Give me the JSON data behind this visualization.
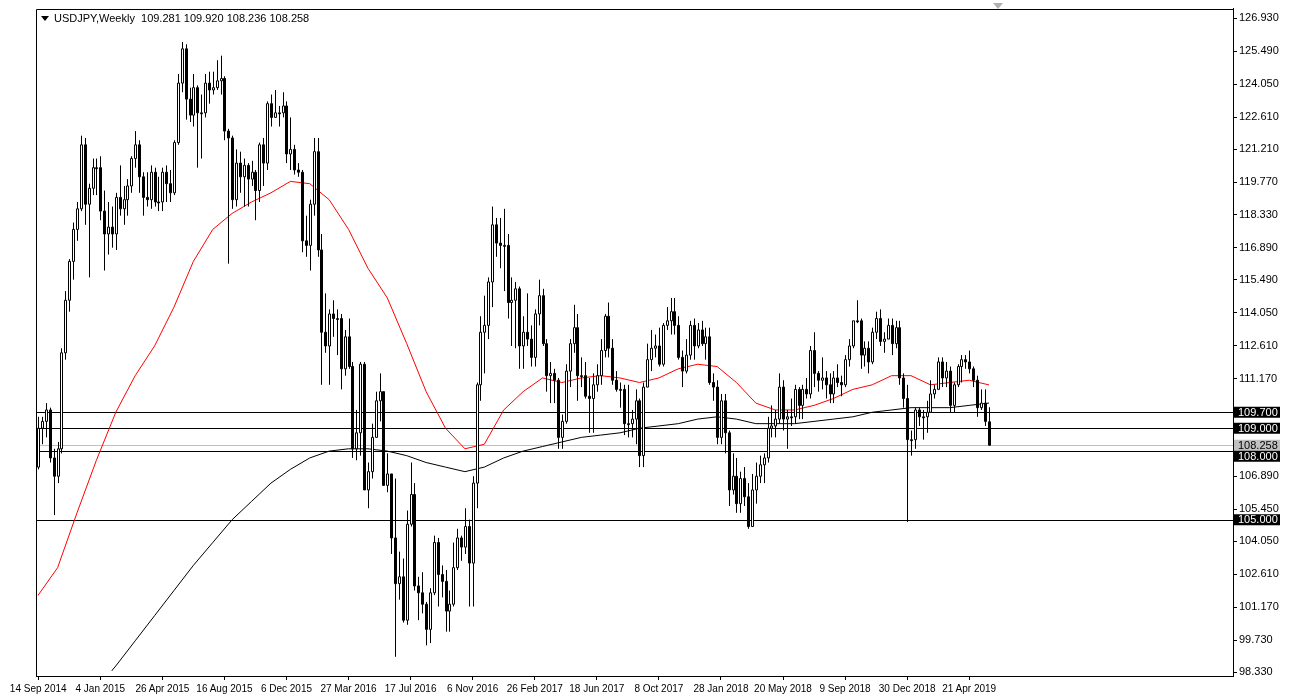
{
  "chart_data": {
    "type": "candlestick",
    "title": "USDJPY,Weekly  109.281 109.920 108.236 108.258",
    "grid": false,
    "legend": false,
    "xlim": [
      "2014-09-10",
      "2020-08-09"
    ],
    "xticks": [
      {
        "value": "2014-09-14",
        "label": "14 Sep 2014"
      },
      {
        "value": "2015-01-04",
        "label": "4 Jan 2015"
      },
      {
        "value": "2015-04-26",
        "label": "26 Apr 2015"
      },
      {
        "value": "2015-08-16",
        "label": "16 Aug 2015"
      },
      {
        "value": "2015-12-06",
        "label": "6 Dec 2015"
      },
      {
        "value": "2016-03-27",
        "label": "27 Mar 2016"
      },
      {
        "value": "2016-07-17",
        "label": "17 Jul 2016"
      },
      {
        "value": "2016-11-06",
        "label": "6 Nov 2016"
      },
      {
        "value": "2017-02-26",
        "label": "26 Feb 2017"
      },
      {
        "value": "2017-06-18",
        "label": "18 Jun 2017"
      },
      {
        "value": "2017-10-08",
        "label": "8 Oct 2017"
      },
      {
        "value": "2018-01-28",
        "label": "28 Jan 2018"
      },
      {
        "value": "2018-05-20",
        "label": "20 May 2018"
      },
      {
        "value": "2018-09-09",
        "label": "9 Sep 2018"
      },
      {
        "value": "2018-12-30",
        "label": "30 Dec 2018"
      },
      {
        "value": "2019-04-21",
        "label": "21 Apr 2019"
      }
    ],
    "ylim": [
      98.16,
      127.36
    ],
    "yticks": [
      {
        "value": 126.93,
        "label": "126.930"
      },
      {
        "value": 125.49,
        "label": "125.490"
      },
      {
        "value": 124.05,
        "label": "124.050"
      },
      {
        "value": 122.61,
        "label": "122.610"
      },
      {
        "value": 121.21,
        "label": "121.210"
      },
      {
        "value": 119.77,
        "label": "119.770"
      },
      {
        "value": 118.33,
        "label": "118.330"
      },
      {
        "value": 116.89,
        "label": "116.890"
      },
      {
        "value": 115.49,
        "label": "115.490"
      },
      {
        "value": 114.05,
        "label": "114.050"
      },
      {
        "value": 112.61,
        "label": "112.610"
      },
      {
        "value": 111.17,
        "label": "111.170"
      },
      {
        "value": 106.89,
        "label": "106.890"
      },
      {
        "value": 105.45,
        "label": "105.450"
      },
      {
        "value": 104.05,
        "label": "104.050"
      },
      {
        "value": 102.61,
        "label": "102.610"
      },
      {
        "value": 101.17,
        "label": "101.170"
      },
      {
        "value": 99.73,
        "label": "99.730"
      },
      {
        "value": 98.33,
        "label": "98.330"
      }
    ],
    "color": "#000000",
    "x": [
      "2014-09-14",
      "2014-09-21",
      "2014-09-28",
      "2014-10-05",
      "2014-10-12",
      "2014-10-19",
      "2014-10-26",
      "2014-11-02",
      "2014-11-09",
      "2014-11-16",
      "2014-11-23",
      "2014-11-30",
      "2014-12-07",
      "2014-12-14",
      "2014-12-21",
      "2014-12-28",
      "2015-01-04",
      "2015-01-11",
      "2015-01-18",
      "2015-01-25",
      "2015-02-01",
      "2015-02-08",
      "2015-02-15",
      "2015-02-22",
      "2015-03-01",
      "2015-03-08",
      "2015-03-15",
      "2015-03-22",
      "2015-03-29",
      "2015-04-05",
      "2015-04-12",
      "2015-04-19",
      "2015-04-26",
      "2015-05-03",
      "2015-05-10",
      "2015-05-17",
      "2015-05-24",
      "2015-05-31",
      "2015-06-07",
      "2015-06-14",
      "2015-06-21",
      "2015-06-28",
      "2015-07-05",
      "2015-07-12",
      "2015-07-19",
      "2015-07-26",
      "2015-08-02",
      "2015-08-09",
      "2015-08-16",
      "2015-08-23",
      "2015-08-30",
      "2015-09-06",
      "2015-09-13",
      "2015-09-20",
      "2015-09-27",
      "2015-10-04",
      "2015-10-11",
      "2015-10-18",
      "2015-10-25",
      "2015-11-01",
      "2015-11-08",
      "2015-11-15",
      "2015-11-22",
      "2015-11-29",
      "2015-12-06",
      "2015-12-13",
      "2015-12-20",
      "2015-12-27",
      "2016-01-03",
      "2016-01-10",
      "2016-01-17",
      "2016-01-24",
      "2016-01-31",
      "2016-02-07",
      "2016-02-14",
      "2016-02-21",
      "2016-02-28",
      "2016-03-06",
      "2016-03-13",
      "2016-03-20",
      "2016-03-27",
      "2016-04-03",
      "2016-04-10",
      "2016-04-17",
      "2016-04-24",
      "2016-05-01",
      "2016-05-08",
      "2016-05-15",
      "2016-05-22",
      "2016-05-29",
      "2016-06-05",
      "2016-06-12",
      "2016-06-19",
      "2016-06-26",
      "2016-07-03",
      "2016-07-10",
      "2016-07-17",
      "2016-07-24",
      "2016-07-31",
      "2016-08-07",
      "2016-08-14",
      "2016-08-21",
      "2016-08-28",
      "2016-09-04",
      "2016-09-11",
      "2016-09-18",
      "2016-09-25",
      "2016-10-02",
      "2016-10-09",
      "2016-10-16",
      "2016-10-23",
      "2016-10-30",
      "2016-11-06",
      "2016-11-13",
      "2016-11-20",
      "2016-11-27",
      "2016-12-04",
      "2016-12-11",
      "2016-12-18",
      "2016-12-25",
      "2017-01-01",
      "2017-01-08",
      "2017-01-15",
      "2017-01-22",
      "2017-01-29",
      "2017-02-05",
      "2017-02-12",
      "2017-02-19",
      "2017-02-26",
      "2017-03-05",
      "2017-03-12",
      "2017-03-19",
      "2017-03-26",
      "2017-04-02",
      "2017-04-09",
      "2017-04-16",
      "2017-04-23",
      "2017-04-30",
      "2017-05-07",
      "2017-05-14",
      "2017-05-21",
      "2017-05-28",
      "2017-06-04",
      "2017-06-11",
      "2017-06-18",
      "2017-06-25",
      "2017-07-02",
      "2017-07-09",
      "2017-07-16",
      "2017-07-23",
      "2017-07-30",
      "2017-08-06",
      "2017-08-13",
      "2017-08-20",
      "2017-08-27",
      "2017-09-03",
      "2017-09-10",
      "2017-09-17",
      "2017-09-24",
      "2017-10-01",
      "2017-10-08",
      "2017-10-15",
      "2017-10-22",
      "2017-10-29",
      "2017-11-05",
      "2017-11-12",
      "2017-11-19",
      "2017-11-26",
      "2017-12-03",
      "2017-12-10",
      "2017-12-17",
      "2017-12-24",
      "2017-12-31",
      "2018-01-07",
      "2018-01-14",
      "2018-01-21",
      "2018-01-28",
      "2018-02-04",
      "2018-02-11",
      "2018-02-18",
      "2018-02-25",
      "2018-03-04",
      "2018-03-11",
      "2018-03-18",
      "2018-03-25",
      "2018-04-01",
      "2018-04-08",
      "2018-04-15",
      "2018-04-22",
      "2018-04-29",
      "2018-05-06",
      "2018-05-13",
      "2018-05-20",
      "2018-05-27",
      "2018-06-03",
      "2018-06-10",
      "2018-06-17",
      "2018-06-24",
      "2018-07-01",
      "2018-07-08",
      "2018-07-15",
      "2018-07-22",
      "2018-07-29",
      "2018-08-05",
      "2018-08-12",
      "2018-08-19",
      "2018-08-26",
      "2018-09-02",
      "2018-09-09",
      "2018-09-16",
      "2018-09-23",
      "2018-09-30",
      "2018-10-07",
      "2018-10-14",
      "2018-10-21",
      "2018-10-28",
      "2018-11-04",
      "2018-11-11",
      "2018-11-18",
      "2018-11-25",
      "2018-12-02",
      "2018-12-09",
      "2018-12-16",
      "2018-12-23",
      "2018-12-30",
      "2019-01-06",
      "2019-01-13",
      "2019-01-20",
      "2019-01-27",
      "2019-02-03",
      "2019-02-10",
      "2019-02-17",
      "2019-02-24",
      "2019-03-03",
      "2019-03-10",
      "2019-03-17",
      "2019-03-24",
      "2019-03-31",
      "2019-04-07",
      "2019-04-14",
      "2019-04-21",
      "2019-04-28",
      "2019-05-05",
      "2019-05-12",
      "2019-05-19",
      "2019-05-26"
    ],
    "ohlc": [
      [
        107.3,
        109.5,
        107.2,
        109.0
      ],
      [
        109.0,
        109.5,
        108.3,
        109.3
      ],
      [
        109.3,
        110.1,
        108.6,
        109.8
      ],
      [
        109.8,
        109.9,
        107.5,
        107.7
      ],
      [
        107.7,
        108.1,
        105.2,
        106.9
      ],
      [
        106.9,
        108.4,
        106.6,
        108.1
      ],
      [
        108.1,
        112.5,
        107.9,
        112.3
      ],
      [
        112.3,
        115.0,
        112.0,
        114.6
      ],
      [
        114.6,
        116.4,
        114.1,
        116.3
      ],
      [
        116.3,
        118.0,
        115.5,
        117.7
      ],
      [
        117.7,
        118.9,
        117.2,
        118.6
      ],
      [
        118.6,
        121.8,
        118.5,
        121.4
      ],
      [
        121.4,
        121.7,
        117.9,
        118.8
      ],
      [
        118.8,
        119.7,
        115.6,
        119.5
      ],
      [
        119.5,
        120.8,
        119.2,
        120.4
      ],
      [
        120.4,
        120.8,
        119.2,
        120.4
      ],
      [
        120.4,
        120.9,
        118.1,
        118.5
      ],
      [
        118.5,
        119.4,
        115.9,
        117.5
      ],
      [
        117.5,
        118.9,
        116.6,
        117.8
      ],
      [
        117.8,
        118.7,
        116.9,
        117.5
      ],
      [
        117.5,
        119.3,
        116.8,
        119.1
      ],
      [
        119.1,
        120.5,
        118.3,
        118.6
      ],
      [
        118.6,
        119.6,
        117.9,
        119.0
      ],
      [
        119.0,
        119.9,
        118.3,
        119.6
      ],
      [
        119.6,
        120.9,
        119.3,
        120.8
      ],
      [
        120.8,
        122.0,
        120.4,
        121.4
      ],
      [
        121.4,
        121.6,
        119.3,
        120.0
      ],
      [
        120.0,
        120.2,
        118.3,
        119.1
      ],
      [
        119.1,
        120.2,
        118.7,
        119.0
      ],
      [
        119.0,
        120.5,
        118.6,
        120.2
      ],
      [
        120.2,
        120.4,
        118.7,
        118.9
      ],
      [
        118.9,
        120.0,
        118.5,
        118.9
      ],
      [
        118.9,
        120.4,
        118.5,
        120.2
      ],
      [
        120.2,
        120.5,
        118.9,
        119.7
      ],
      [
        119.7,
        120.3,
        118.9,
        119.3
      ],
      [
        119.3,
        121.6,
        119.2,
        121.5
      ],
      [
        121.5,
        124.5,
        121.4,
        124.1
      ],
      [
        124.1,
        125.9,
        123.7,
        125.6
      ],
      [
        125.6,
        125.8,
        122.5,
        123.4
      ],
      [
        123.4,
        123.9,
        122.4,
        122.7
      ],
      [
        122.7,
        124.5,
        122.2,
        123.9
      ],
      [
        123.9,
        124.0,
        120.4,
        122.8
      ],
      [
        122.8,
        123.6,
        120.8,
        122.8
      ],
      [
        122.8,
        124.5,
        122.6,
        124.1
      ],
      [
        124.1,
        124.6,
        123.2,
        123.8
      ],
      [
        123.8,
        124.6,
        123.6,
        123.9
      ],
      [
        123.9,
        125.1,
        123.8,
        124.2
      ],
      [
        124.2,
        125.3,
        123.6,
        124.3
      ],
      [
        124.3,
        124.4,
        121.6,
        122.0
      ],
      [
        122.0,
        122.1,
        116.2,
        121.7
      ],
      [
        121.7,
        121.8,
        118.6,
        119.0
      ],
      [
        119.0,
        121.2,
        118.7,
        120.6
      ],
      [
        120.6,
        121.1,
        119.3,
        120.0
      ],
      [
        120.0,
        120.8,
        118.7,
        120.5
      ],
      [
        120.5,
        120.6,
        118.7,
        119.9
      ],
      [
        119.9,
        120.7,
        119.6,
        120.2
      ],
      [
        120.2,
        120.3,
        118.1,
        119.4
      ],
      [
        119.4,
        121.5,
        118.9,
        121.4
      ],
      [
        121.4,
        121.7,
        119.6,
        120.6
      ],
      [
        120.6,
        123.3,
        120.3,
        123.2
      ],
      [
        123.2,
        123.6,
        122.2,
        122.6
      ],
      [
        122.6,
        123.8,
        122.6,
        122.8
      ],
      [
        122.8,
        123.1,
        122.2,
        122.8
      ],
      [
        122.8,
        123.7,
        122.6,
        123.1
      ],
      [
        123.1,
        123.3,
        120.6,
        121.0
      ],
      [
        121.0,
        122.6,
        120.3,
        121.2
      ],
      [
        121.2,
        121.4,
        120.1,
        120.3
      ],
      [
        120.3,
        120.6,
        120.0,
        120.2
      ],
      [
        120.2,
        120.3,
        116.7,
        117.2
      ],
      [
        117.2,
        118.3,
        116.5,
        117.0
      ],
      [
        117.0,
        119.0,
        115.9,
        118.8
      ],
      [
        118.8,
        121.7,
        118.3,
        121.1
      ],
      [
        121.1,
        121.7,
        116.5,
        116.8
      ],
      [
        116.8,
        117.5,
        110.9,
        113.2
      ],
      [
        113.2,
        114.9,
        112.3,
        112.6
      ],
      [
        112.6,
        114.2,
        110.9,
        114.0
      ],
      [
        114.0,
        114.6,
        113.0,
        113.8
      ],
      [
        113.8,
        114.2,
        112.2,
        113.8
      ],
      [
        113.8,
        114.0,
        110.7,
        111.6
      ],
      [
        111.6,
        113.3,
        111.3,
        113.0
      ],
      [
        113.0,
        113.8,
        111.6,
        111.7
      ],
      [
        111.7,
        111.9,
        107.7,
        108.1
      ],
      [
        108.1,
        109.8,
        107.6,
        108.8
      ],
      [
        108.8,
        111.9,
        107.8,
        111.8
      ],
      [
        111.8,
        111.9,
        106.3,
        106.3
      ],
      [
        106.3,
        107.5,
        105.5,
        107.1
      ],
      [
        107.1,
        109.2,
        106.8,
        108.6
      ],
      [
        108.6,
        110.6,
        108.6,
        110.2
      ],
      [
        110.2,
        111.4,
        109.3,
        110.6
      ],
      [
        110.6,
        110.6,
        106.5,
        106.5
      ],
      [
        106.5,
        107.9,
        106.2,
        107.0
      ],
      [
        107.0,
        107.0,
        103.5,
        104.2
      ],
      [
        104.2,
        106.8,
        99.0,
        102.2
      ],
      [
        102.2,
        103.6,
        101.5,
        102.5
      ],
      [
        102.5,
        103.3,
        100.5,
        100.6
      ],
      [
        100.6,
        105.4,
        100.4,
        104.8
      ],
      [
        104.8,
        107.5,
        104.7,
        106.1
      ],
      [
        106.1,
        106.6,
        101.9,
        102.1
      ],
      [
        102.1,
        102.5,
        100.6,
        101.8
      ],
      [
        101.8,
        102.7,
        100.9,
        101.3
      ],
      [
        101.3,
        101.4,
        99.5,
        100.2
      ],
      [
        100.2,
        102.0,
        99.6,
        101.8
      ],
      [
        101.8,
        104.3,
        101.7,
        104.0
      ],
      [
        104.0,
        104.2,
        101.2,
        102.6
      ],
      [
        102.6,
        103.0,
        101.6,
        102.3
      ],
      [
        102.3,
        102.8,
        100.1,
        101.0
      ],
      [
        101.0,
        101.9,
        100.1,
        101.3
      ],
      [
        101.3,
        104.0,
        101.2,
        102.9
      ],
      [
        102.9,
        104.6,
        102.8,
        104.2
      ],
      [
        104.2,
        104.3,
        103.2,
        103.8
      ],
      [
        103.8,
        105.5,
        103.5,
        104.7
      ],
      [
        104.7,
        105.0,
        101.2,
        103.1
      ],
      [
        103.1,
        106.9,
        101.2,
        106.6
      ],
      [
        106.6,
        111.0,
        105.5,
        110.9
      ],
      [
        110.9,
        113.9,
        110.2,
        113.2
      ],
      [
        113.2,
        114.8,
        111.4,
        113.5
      ],
      [
        113.5,
        115.6,
        112.9,
        115.4
      ],
      [
        115.4,
        118.7,
        114.3,
        117.9
      ],
      [
        117.9,
        118.2,
        116.5,
        117.1
      ],
      [
        117.1,
        118.2,
        116.0,
        117.0
      ],
      [
        117.0,
        118.6,
        115.0,
        117.0
      ],
      [
        117.0,
        117.5,
        113.8,
        114.5
      ],
      [
        114.5,
        115.6,
        112.6,
        114.6
      ],
      [
        114.6,
        115.4,
        112.5,
        115.1
      ],
      [
        115.1,
        115.2,
        111.6,
        112.6
      ],
      [
        112.6,
        113.9,
        111.6,
        113.2
      ],
      [
        113.2,
        114.9,
        112.6,
        112.9
      ],
      [
        112.9,
        113.5,
        111.7,
        112.1
      ],
      [
        112.1,
        114.2,
        111.7,
        114.0
      ],
      [
        114.0,
        115.5,
        113.5,
        114.8
      ],
      [
        114.8,
        115.1,
        112.6,
        112.7
      ],
      [
        112.7,
        112.9,
        110.6,
        111.3
      ],
      [
        111.3,
        111.9,
        110.1,
        111.4
      ],
      [
        111.4,
        111.6,
        110.1,
        111.1
      ],
      [
        111.1,
        111.2,
        108.1,
        108.6
      ],
      [
        108.6,
        109.6,
        108.1,
        109.3
      ],
      [
        109.3,
        111.8,
        109.2,
        111.5
      ],
      [
        111.5,
        112.9,
        110.8,
        112.7
      ],
      [
        112.7,
        114.4,
        112.3,
        113.4
      ],
      [
        113.4,
        114.0,
        110.2,
        111.3
      ],
      [
        111.3,
        112.1,
        110.8,
        111.3
      ],
      [
        111.3,
        111.9,
        110.3,
        110.4
      ],
      [
        110.4,
        111.2,
        108.8,
        110.3
      ],
      [
        110.3,
        111.4,
        108.8,
        110.9
      ],
      [
        110.9,
        111.8,
        110.6,
        111.3
      ],
      [
        111.3,
        112.9,
        110.9,
        112.4
      ],
      [
        112.4,
        114.0,
        112.1,
        113.9
      ],
      [
        113.9,
        114.5,
        112.1,
        112.5
      ],
      [
        112.5,
        112.9,
        110.9,
        111.1
      ],
      [
        111.1,
        111.5,
        110.6,
        110.7
      ],
      [
        110.7,
        111.0,
        109.9,
        110.7
      ],
      [
        110.7,
        110.9,
        108.7,
        109.2
      ],
      [
        109.2,
        110.9,
        108.6,
        109.2
      ],
      [
        109.2,
        109.8,
        108.6,
        109.4
      ],
      [
        109.4,
        110.7,
        108.3,
        110.2
      ],
      [
        110.2,
        110.3,
        107.3,
        107.8
      ],
      [
        107.8,
        111.0,
        107.3,
        110.8
      ],
      [
        110.8,
        112.7,
        110.8,
        112.0
      ],
      [
        112.0,
        113.3,
        111.5,
        112.5
      ],
      [
        112.5,
        113.1,
        112.1,
        112.6
      ],
      [
        112.6,
        113.4,
        111.7,
        111.8
      ],
      [
        111.8,
        113.6,
        111.7,
        113.5
      ],
      [
        113.5,
        114.3,
        113.3,
        113.7
      ],
      [
        113.7,
        114.7,
        113.1,
        114.1
      ],
      [
        114.1,
        114.7,
        113.1,
        113.5
      ],
      [
        113.5,
        113.9,
        112.0,
        112.1
      ],
      [
        112.1,
        112.4,
        110.8,
        111.5
      ],
      [
        111.5,
        112.9,
        111.4,
        112.2
      ],
      [
        112.2,
        113.7,
        112.0,
        113.5
      ],
      [
        113.5,
        113.8,
        112.0,
        112.6
      ],
      [
        112.6,
        113.6,
        112.5,
        113.3
      ],
      [
        113.3,
        113.7,
        112.6,
        112.7
      ],
      [
        112.7,
        113.4,
        112.0,
        113.0
      ],
      [
        113.0,
        113.4,
        110.9,
        111.0
      ],
      [
        111.0,
        111.4,
        110.2,
        110.8
      ],
      [
        110.8,
        111.1,
        108.3,
        108.6
      ],
      [
        108.6,
        110.5,
        108.3,
        110.2
      ],
      [
        110.2,
        110.5,
        107.9,
        108.8
      ],
      [
        108.8,
        108.9,
        105.6,
        106.3
      ],
      [
        106.3,
        107.9,
        106.1,
        106.9
      ],
      [
        106.9,
        107.7,
        105.3,
        105.7
      ],
      [
        105.7,
        107.1,
        105.3,
        106.8
      ],
      [
        106.8,
        107.3,
        105.6,
        106.0
      ],
      [
        106.0,
        106.6,
        104.6,
        104.7
      ],
      [
        104.7,
        107.0,
        104.7,
        106.3
      ],
      [
        106.3,
        107.5,
        105.7,
        106.9
      ],
      [
        106.9,
        107.8,
        106.6,
        107.4
      ],
      [
        107.4,
        107.9,
        106.6,
        107.7
      ],
      [
        107.7,
        109.5,
        107.5,
        109.0
      ],
      [
        109.0,
        110.0,
        108.6,
        109.1
      ],
      [
        109.1,
        109.8,
        108.6,
        109.4
      ],
      [
        109.4,
        111.4,
        109.2,
        110.8
      ],
      [
        110.8,
        111.1,
        108.9,
        109.4
      ],
      [
        109.4,
        109.8,
        108.1,
        109.5
      ],
      [
        109.5,
        110.3,
        109.1,
        109.5
      ],
      [
        109.5,
        110.9,
        109.2,
        110.7
      ],
      [
        110.7,
        110.8,
        109.4,
        110.0
      ],
      [
        110.0,
        110.9,
        109.4,
        110.7
      ],
      [
        110.7,
        111.2,
        110.3,
        110.5
      ],
      [
        110.5,
        112.6,
        110.3,
        112.4
      ],
      [
        112.4,
        113.2,
        110.8,
        111.4
      ],
      [
        111.4,
        111.5,
        110.6,
        111.1
      ],
      [
        111.1,
        112.1,
        110.7,
        111.2
      ],
      [
        111.2,
        111.5,
        110.3,
        110.9
      ],
      [
        110.9,
        111.4,
        110.1,
        110.5
      ],
      [
        110.5,
        111.5,
        110.1,
        111.2
      ],
      [
        111.2,
        111.8,
        110.8,
        111.0
      ],
      [
        111.0,
        111.3,
        110.4,
        110.9
      ],
      [
        110.9,
        112.2,
        110.8,
        112.0
      ],
      [
        112.0,
        112.9,
        111.7,
        112.6
      ],
      [
        112.6,
        113.7,
        112.5,
        113.7
      ],
      [
        113.7,
        114.6,
        113.6,
        113.7
      ],
      [
        113.7,
        113.8,
        111.6,
        112.2
      ],
      [
        112.2,
        112.8,
        111.7,
        112.5
      ],
      [
        112.5,
        112.8,
        111.4,
        111.9
      ],
      [
        111.9,
        113.4,
        111.8,
        113.2
      ],
      [
        113.2,
        114.1,
        112.9,
        113.8
      ],
      [
        113.8,
        114.2,
        112.6,
        112.8
      ],
      [
        112.8,
        113.2,
        112.3,
        112.9
      ],
      [
        112.9,
        113.8,
        112.9,
        113.5
      ],
      [
        113.5,
        113.8,
        112.2,
        112.7
      ],
      [
        112.7,
        113.7,
        112.5,
        113.4
      ],
      [
        113.4,
        113.7,
        110.9,
        111.2
      ],
      [
        111.2,
        111.4,
        109.9,
        110.3
      ],
      [
        110.3,
        110.9,
        104.9,
        108.5
      ],
      [
        108.5,
        108.9,
        107.8,
        108.5
      ],
      [
        108.5,
        109.9,
        108.1,
        109.8
      ],
      [
        109.8,
        109.9,
        109.1,
        109.5
      ],
      [
        109.5,
        109.8,
        108.5,
        109.5
      ],
      [
        109.5,
        110.2,
        108.8,
        109.7
      ],
      [
        109.7,
        111.1,
        109.7,
        110.5
      ],
      [
        110.5,
        110.9,
        110.3,
        110.7
      ],
      [
        110.7,
        112.1,
        110.7,
        111.9
      ],
      [
        111.9,
        112.1,
        110.8,
        111.2
      ],
      [
        111.2,
        111.9,
        110.8,
        111.5
      ],
      [
        111.5,
        111.7,
        109.7,
        110.0
      ],
      [
        110.0,
        111.0,
        109.7,
        110.9
      ],
      [
        110.9,
        111.8,
        110.8,
        111.7
      ],
      [
        111.7,
        112.2,
        111.0,
        112.0
      ],
      [
        112.0,
        112.2,
        111.6,
        111.9
      ],
      [
        111.9,
        112.4,
        111.4,
        111.6
      ],
      [
        111.6,
        111.7,
        110.8,
        111.1
      ],
      [
        111.1,
        111.3,
        109.5,
        109.9
      ],
      [
        109.9,
        110.7,
        109.8,
        110.1
      ],
      [
        110.1,
        110.7,
        109.1,
        109.3
      ],
      [
        109.281,
        109.92,
        108.236,
        108.258
      ]
    ],
    "series": [
      {
        "type": "line",
        "color": "#ff0000",
        "x": [
          "2014-09-14",
          "2014-10-19",
          "2014-11-23",
          "2014-12-28",
          "2015-02-01",
          "2015-03-08",
          "2015-04-12",
          "2015-05-17",
          "2015-06-21",
          "2015-07-26",
          "2015-08-30",
          "2015-10-04",
          "2015-11-08",
          "2015-12-13",
          "2016-01-17",
          "2016-02-21",
          "2016-03-27",
          "2016-05-01",
          "2016-06-05",
          "2016-07-10",
          "2016-08-14",
          "2016-09-18",
          "2016-10-23",
          "2016-11-27",
          "2017-01-01",
          "2017-02-05",
          "2017-03-12",
          "2017-04-16",
          "2017-05-21",
          "2017-06-25",
          "2017-07-30",
          "2017-09-03",
          "2017-10-08",
          "2017-11-12",
          "2017-12-17",
          "2018-01-21",
          "2018-02-25",
          "2018-04-01",
          "2018-05-06",
          "2018-06-10",
          "2018-07-15",
          "2018-08-19",
          "2018-09-23",
          "2018-10-28",
          "2018-12-02",
          "2019-01-06",
          "2019-02-10",
          "2019-03-17",
          "2019-04-21",
          "2019-05-26"
        ],
        "values": [
          101.7,
          102.9,
          105.3,
          107.6,
          109.7,
          111.3,
          112.6,
          114.3,
          116.3,
          117.7,
          118.4,
          118.9,
          119.3,
          119.8,
          119.7,
          119.0,
          117.7,
          116.0,
          114.7,
          112.7,
          110.6,
          109.0,
          108.1,
          108.3,
          109.8,
          110.6,
          111.2,
          111.0,
          111.2,
          111.3,
          111.2,
          111.0,
          111.2,
          111.6,
          111.8,
          111.7,
          111.0,
          110.1,
          109.8,
          109.8,
          110.0,
          110.3,
          110.7,
          110.9,
          111.3,
          111.3,
          110.9,
          111.0,
          111.1,
          110.9
        ]
      },
      {
        "type": "line",
        "color": "#000000",
        "x": [
          "2015-01-25",
          "2015-02-01",
          "2015-03-08",
          "2015-04-12",
          "2015-05-17",
          "2015-06-21",
          "2015-07-26",
          "2015-08-30",
          "2015-10-04",
          "2015-11-08",
          "2015-12-13",
          "2016-01-17",
          "2016-02-21",
          "2016-03-27",
          "2016-05-01",
          "2016-06-05",
          "2016-07-10",
          "2016-08-14",
          "2016-09-18",
          "2016-10-23",
          "2016-11-27",
          "2017-01-01",
          "2017-02-05",
          "2017-03-12",
          "2017-04-16",
          "2017-05-21",
          "2017-06-25",
          "2017-07-30",
          "2017-09-03",
          "2017-10-08",
          "2017-11-12",
          "2017-12-17",
          "2018-01-21",
          "2018-02-25",
          "2018-04-01",
          "2018-05-06",
          "2018-06-10",
          "2018-07-15",
          "2018-08-19",
          "2018-09-23",
          "2018-10-28",
          "2018-12-02",
          "2019-01-06",
          "2019-02-10",
          "2019-03-17",
          "2019-04-21",
          "2019-05-26"
        ],
        "values": [
          98.4,
          98.6,
          99.7,
          100.8,
          101.9,
          103.0,
          104.0,
          105.0,
          105.8,
          106.6,
          107.2,
          107.7,
          108.0,
          108.1,
          108.1,
          108.0,
          107.8,
          107.5,
          107.3,
          107.1,
          107.3,
          107.7,
          108.0,
          108.2,
          108.4,
          108.6,
          108.7,
          108.8,
          109.0,
          109.1,
          109.2,
          109.4,
          109.5,
          109.4,
          109.2,
          109.2,
          109.2,
          109.3,
          109.4,
          109.5,
          109.7,
          109.8,
          109.9,
          109.9,
          109.9,
          110.0,
          110.1
        ]
      }
    ],
    "ref_lines": [
      {
        "axis": "y",
        "value": 109.7,
        "label": "109.700",
        "color": "#000000"
      },
      {
        "axis": "y",
        "value": 109.0,
        "label": "109.000",
        "color": "#000000"
      },
      {
        "axis": "y",
        "value": 108.258,
        "label": "108.258",
        "color": "#c0c0c0"
      },
      {
        "axis": "y",
        "value": 108.0,
        "label": "108.000",
        "color": "#000000"
      },
      {
        "axis": "y",
        "value": 105.0,
        "label": "105.000",
        "color": "#000000"
      }
    ]
  }
}
